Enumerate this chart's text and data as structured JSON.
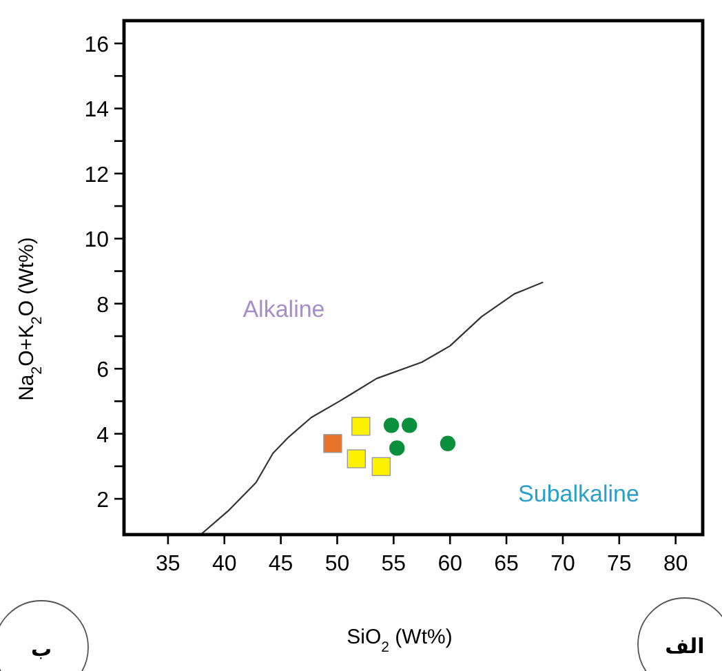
{
  "chart_data": {
    "type": "scatter",
    "xlabel": "SiO$_{2}$ (Wt%)",
    "ylabel": "Na$_{2}$O+K$_{2}$O (Wt%)",
    "xlim": [
      31.1,
      82.4
    ],
    "ylim": [
      0.9,
      16.7
    ],
    "xticks": [
      35,
      40,
      45,
      50,
      55,
      60,
      65,
      70,
      75,
      80
    ],
    "yticks": [
      2,
      {
        "value": 3,
        "label": null
      },
      4,
      {
        "value": 5,
        "label": null
      },
      6,
      {
        "value": 7,
        "label": null
      },
      8,
      {
        "value": 9,
        "label": null
      },
      10,
      {
        "value": 11,
        "label": null
      },
      12,
      {
        "value": 13,
        "label": null
      },
      14,
      {
        "value": 15,
        "label": null
      },
      16
    ],
    "grid": false,
    "series": [
      {
        "type": "line",
        "color": "#333333",
        "line_style": "solid",
        "x": [
          37.9,
          40.4,
          42.8,
          44.3,
          45.7,
          47.7,
          50.2,
          53.5,
          57.5,
          60.0,
          62.8,
          65.7,
          68.2
        ],
        "values": [
          0.9,
          1.65,
          2.5,
          3.4,
          3.9,
          4.5,
          5.0,
          5.7,
          6.2,
          6.7,
          7.6,
          8.3,
          8.65
        ]
      },
      {
        "color": "#e8732a",
        "marker": "square",
        "x": [
          49.6
        ],
        "values": [
          3.7
        ]
      },
      {
        "color": "#fff200",
        "marker": "square",
        "x": [
          52.1,
          51.7,
          53.9
        ],
        "values": [
          4.23,
          3.23,
          2.99
        ]
      },
      {
        "color": "#0a8f3c",
        "marker": "circle",
        "x": [
          54.8,
          56.4,
          55.3,
          59.8
        ],
        "values": [
          4.26,
          4.26,
          3.56,
          3.7
        ]
      }
    ],
    "annotations": [
      "Alkaline",
      "Subalkaline",
      "ب",
      "الف"
    ]
  }
}
